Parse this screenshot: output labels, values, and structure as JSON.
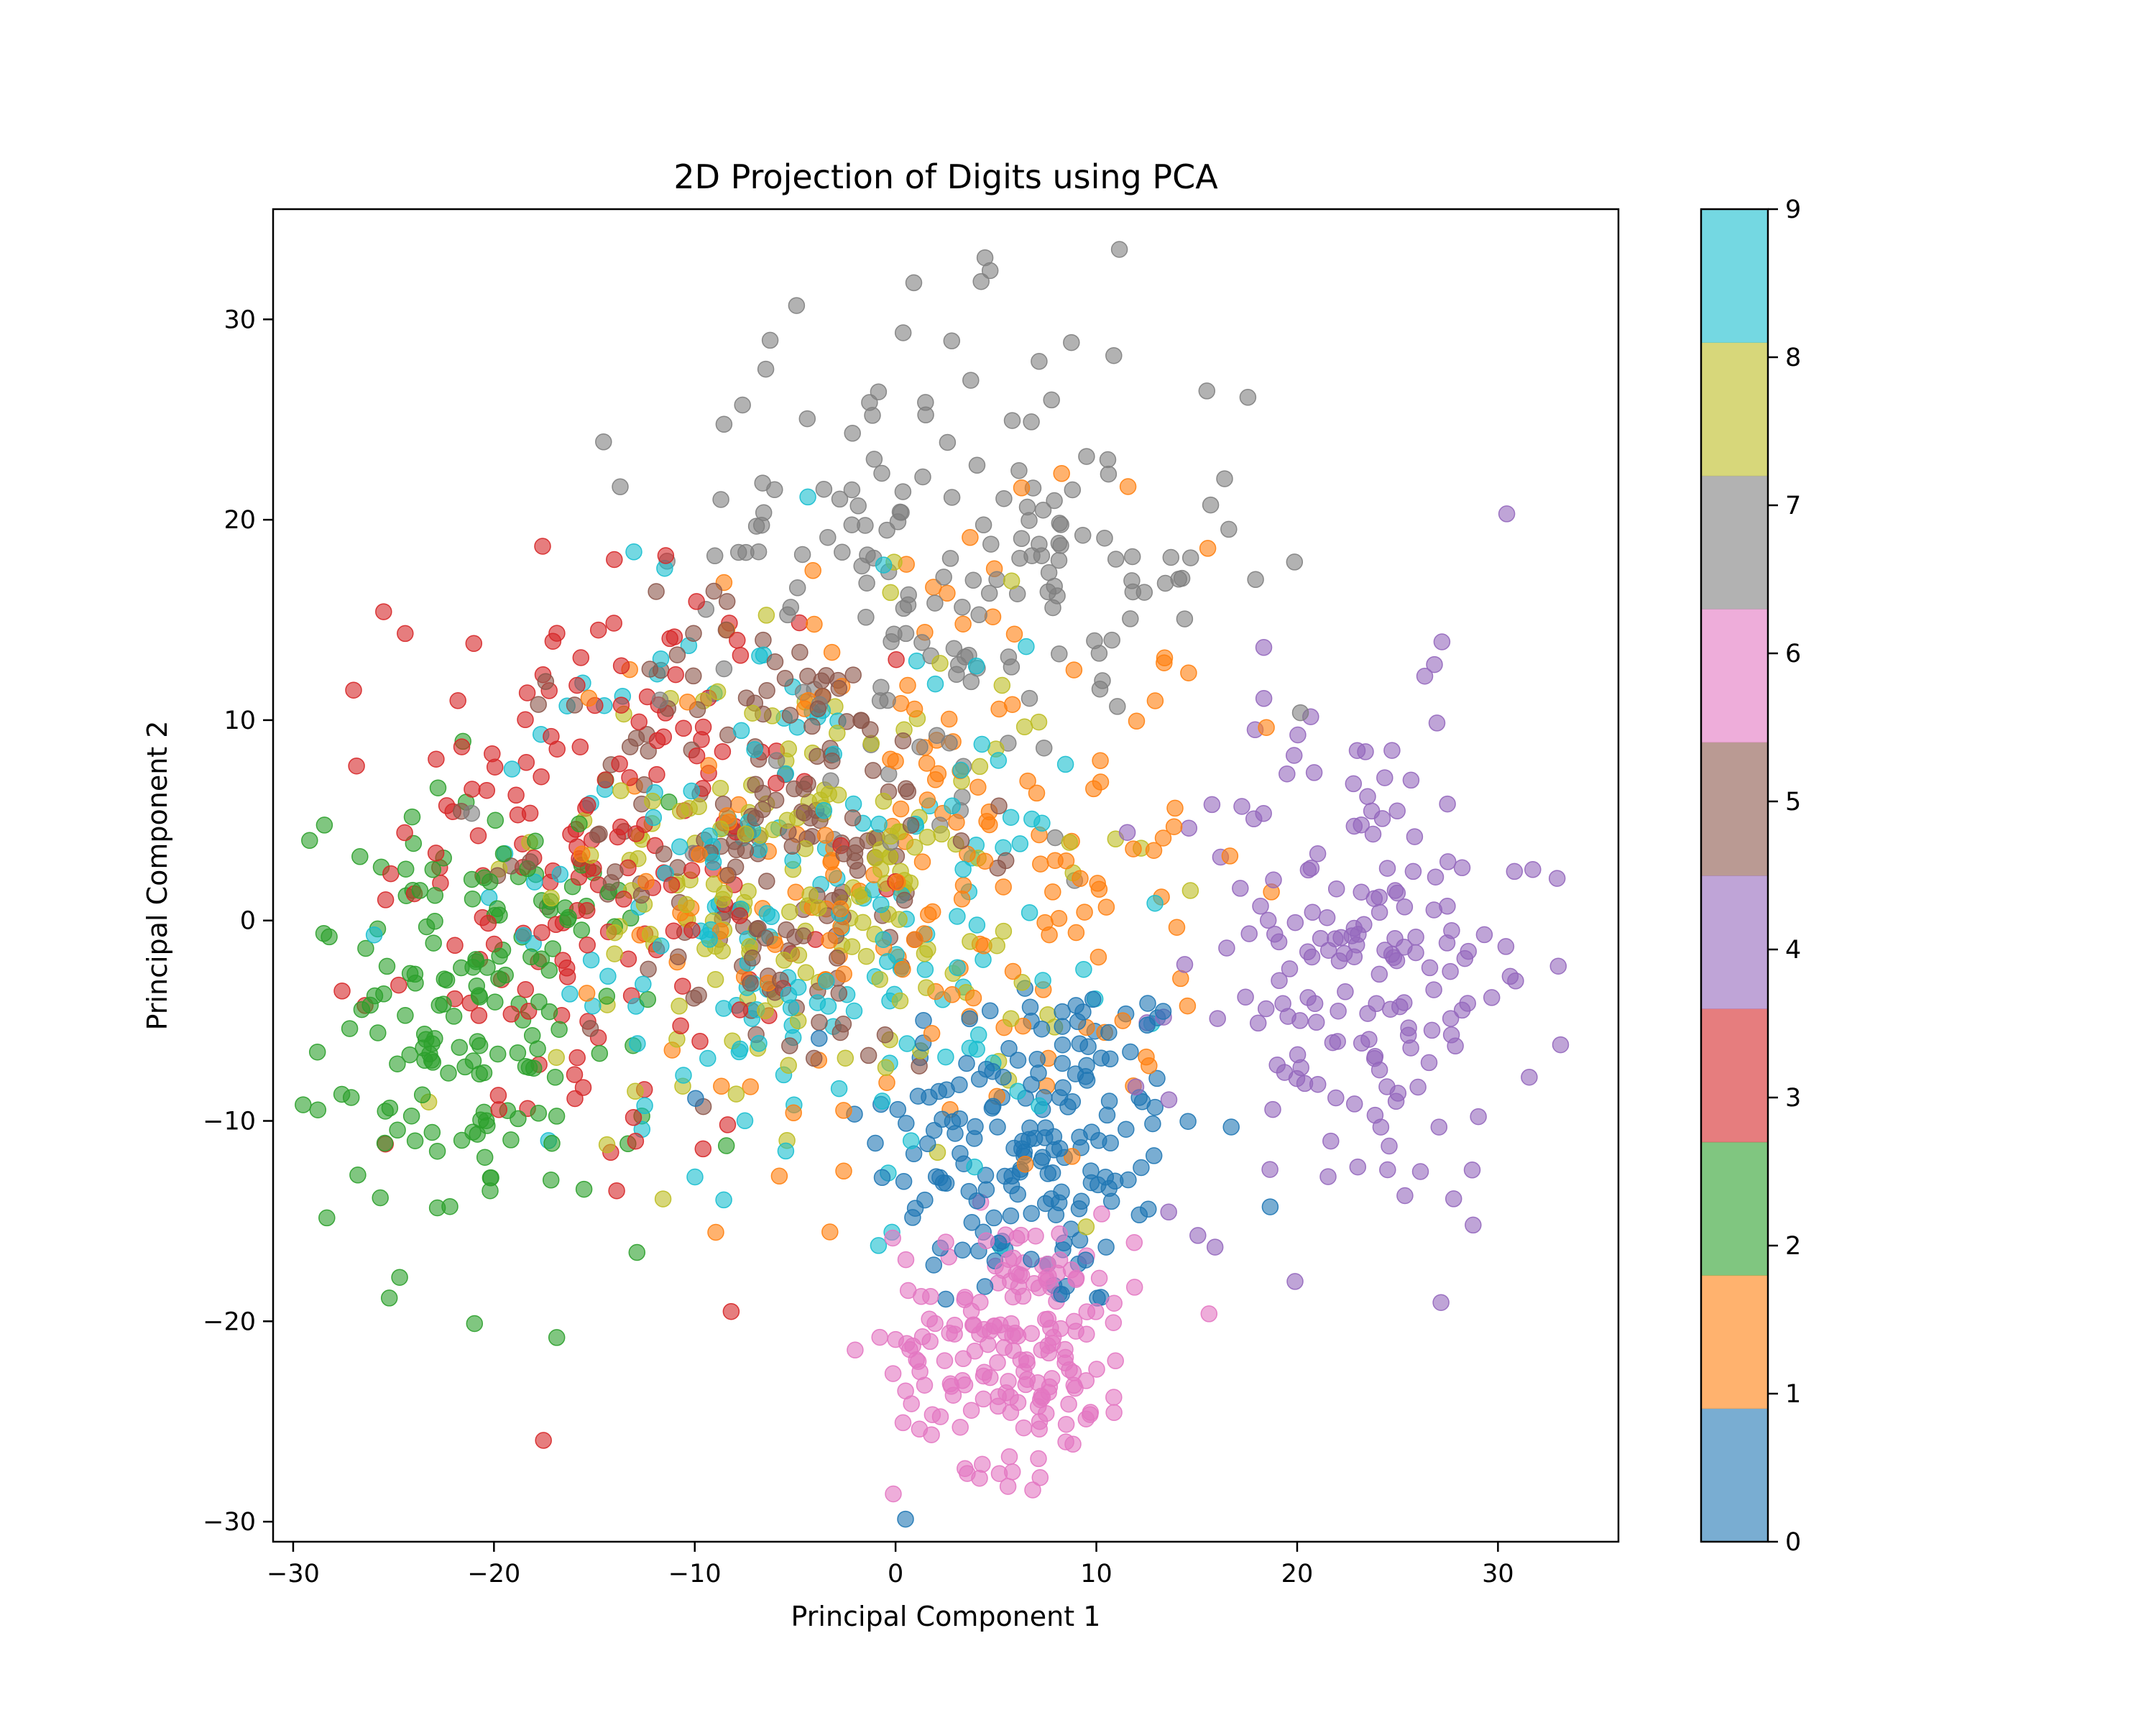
{
  "chart_data": {
    "type": "scatter",
    "title": "2D Projection of Digits using PCA",
    "xlabel": "Principal Component 1",
    "ylabel": "Principal Component 2",
    "xlim": [
      -31,
      36
    ],
    "ylim": [
      -31,
      35.5
    ],
    "x_ticks": [
      -30,
      -20,
      -10,
      0,
      10,
      20,
      30
    ],
    "y_ticks": [
      -30,
      -20,
      -10,
      0,
      10,
      20,
      30
    ],
    "x_tick_labels": [
      "−30",
      "−20",
      "−10",
      "0",
      "10",
      "20",
      "30"
    ],
    "y_tick_labels": [
      "−30",
      "−20",
      "−10",
      "0",
      "10",
      "20",
      "30"
    ],
    "grid": false,
    "marker_alpha": 0.6,
    "colorbar": {
      "range": [
        0,
        9
      ],
      "ticks": [
        0,
        1,
        2,
        3,
        4,
        5,
        6,
        7,
        8,
        9
      ],
      "tick_labels": [
        "0",
        "1",
        "2",
        "3",
        "4",
        "5",
        "6",
        "7",
        "8",
        "9"
      ],
      "class_colors": [
        "#1f77b4",
        "#ff7f0e",
        "#2ca02c",
        "#d62728",
        "#9467bd",
        "#8c564b",
        "#e377c2",
        "#7f7f7f",
        "#bcbd22",
        "#17becf"
      ]
    },
    "clusters": [
      {
        "class": 0,
        "center": [
          7,
          -11
        ],
        "spread": [
          4.2,
          4.5
        ],
        "count": 180,
        "color": "#1f77b4"
      },
      {
        "class": 1,
        "center": [
          2,
          3
        ],
        "spread": [
          7,
          8
        ],
        "count": 180,
        "color": "#ff7f0e"
      },
      {
        "class": 2,
        "center": [
          -21,
          -5
        ],
        "spread": [
          4.5,
          5.5
        ],
        "count": 175,
        "color": "#2ca02c"
      },
      {
        "class": 3,
        "center": [
          -15,
          3
        ],
        "spread": [
          5,
          7.5
        ],
        "count": 180,
        "color": "#d62728"
      },
      {
        "class": 4,
        "center": [
          23,
          -2
        ],
        "spread": [
          4.5,
          6.5
        ],
        "count": 180,
        "color": "#9467bd"
      },
      {
        "class": 5,
        "center": [
          -6,
          4
        ],
        "spread": [
          5,
          6
        ],
        "count": 180,
        "color": "#8c564b"
      },
      {
        "class": 6,
        "center": [
          6,
          -21
        ],
        "spread": [
          3,
          3.2
        ],
        "count": 180,
        "color": "#e377c2"
      },
      {
        "class": 7,
        "center": [
          3,
          18
        ],
        "spread": [
          7.5,
          6
        ],
        "count": 180,
        "color": "#7f7f7f"
      },
      {
        "class": 8,
        "center": [
          -4,
          2
        ],
        "spread": [
          6.5,
          6
        ],
        "count": 175,
        "color": "#bcbd22"
      },
      {
        "class": 9,
        "center": [
          -5,
          1
        ],
        "spread": [
          7,
          7
        ],
        "count": 180,
        "color": "#17becf"
      }
    ]
  }
}
